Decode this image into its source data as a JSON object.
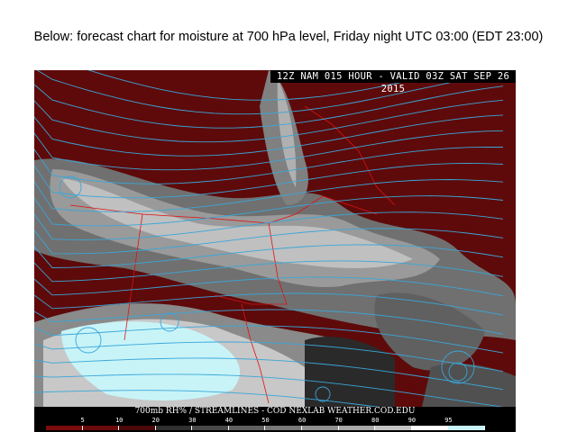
{
  "slide": {
    "title": "Below: forecast chart for moisture at 700 hPa level, Friday night UTC 03:00 (EDT 23:00)"
  },
  "map": {
    "header": "12Z NAM 015 HOUR - VALID 03Z SAT SEP 26 2015",
    "footer": "700mb RH% / STREAMLINES - COD NEXLAB   WEATHER.COD.EDU",
    "colors": {
      "dry": "#6b0a0a",
      "streamline": "#3aa6d8",
      "border": "#e01010",
      "moist": "#c8f4f8"
    },
    "colorbar": {
      "labels": [
        "5",
        "10",
        "20",
        "30",
        "40",
        "50",
        "60",
        "70",
        "80",
        "90",
        "95"
      ],
      "colors": [
        "#7a0c0c",
        "#6a0a0a",
        "#4a0808",
        "#303030",
        "#484848",
        "#606060",
        "#787878",
        "#909090",
        "#a8a8a8",
        "#c4c4c4",
        "#ffffff",
        "#c8f4f8"
      ]
    }
  }
}
